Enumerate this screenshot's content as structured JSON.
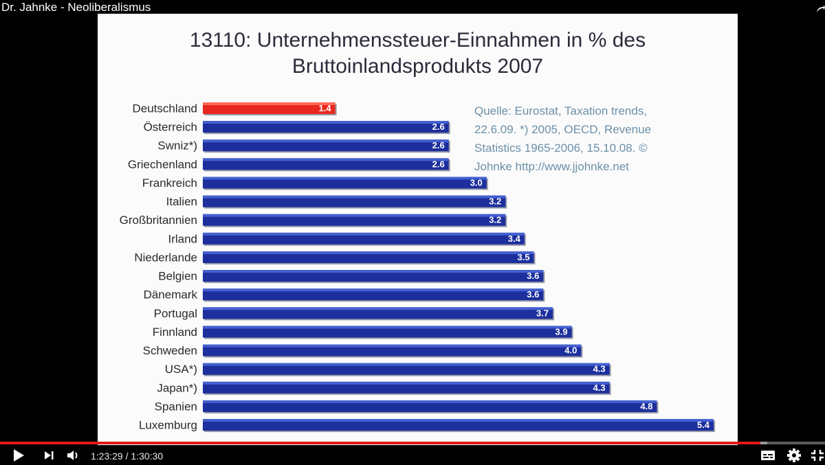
{
  "video": {
    "title": "Dr. Jahnke - Neoliberalismus",
    "current_time": "1:23:29",
    "duration": "1:30:30",
    "progress_fraction": 0.922,
    "buffered_fraction": 0.93
  },
  "slide": {
    "title_line1": "13110: Unternehmenssteuer-Einnahmen in % des",
    "title_line2": "Bruttoinlandsprodukts 2007",
    "source_lines": [
      "Quelle: Eurostat, Taxation trends,",
      "22.6.09. *) 2005, OECD, Revenue",
      "Statistics 1965-2006, 15.10.08. ©",
      "Johnke   http://www.jjohnke.net"
    ]
  },
  "chart_data": {
    "type": "bar",
    "orientation": "horizontal",
    "categories": [
      "Deutschland",
      "Österreich",
      "Swniz*)",
      "Griechenland",
      "Frankreich",
      "Italien",
      "Großbritannien",
      "Irland",
      "Niederlande",
      "Belgien",
      "Dänemark",
      "Portugal",
      "Finnland",
      "Schweden",
      "USA*)",
      "Japan*)",
      "Spanien",
      "Luxemburg"
    ],
    "values": [
      1.4,
      2.6,
      2.6,
      2.6,
      3.0,
      3.2,
      3.2,
      3.4,
      3.5,
      3.6,
      3.6,
      3.7,
      3.9,
      4.0,
      4.3,
      4.3,
      4.8,
      5.4
    ],
    "value_labels": [
      "1.4",
      "2.6",
      "2.6",
      "2.6",
      "3.0",
      "3.2",
      "3.2",
      "3.4",
      "3.5",
      "3.6",
      "3.6",
      "3.7",
      "3.9",
      "4.0",
      "4.3",
      "4.3",
      "4.8",
      "5.4"
    ],
    "highlight_category": "Deutschland",
    "highlight_color": "#e8281e",
    "bar_color": "#1c2f9c",
    "xlim": [
      0,
      5.4
    ],
    "legend": "none",
    "grid": false
  },
  "icons": {
    "share": "share-icon",
    "play": "play-icon",
    "next": "next-icon",
    "volume": "volume-icon",
    "subtitles": "subtitles-icon",
    "settings": "settings-icon",
    "fullscreen": "exit-fullscreen-icon"
  }
}
